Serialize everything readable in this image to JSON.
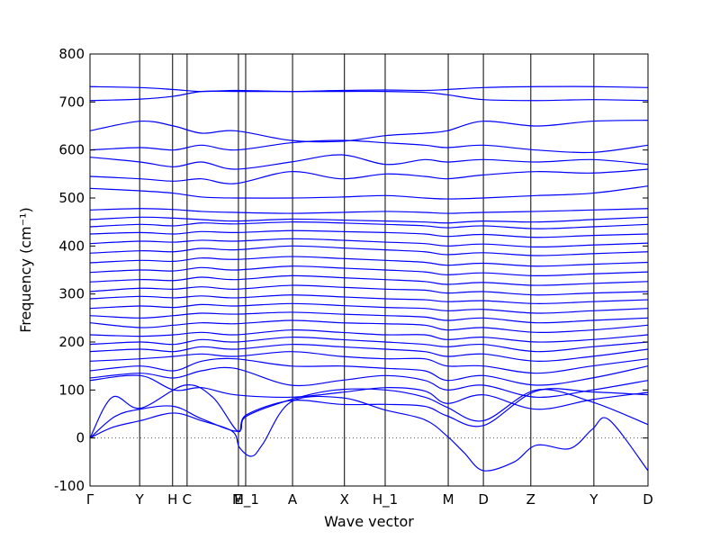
{
  "chart_data": {
    "type": "line",
    "xlabel": "Wave vector",
    "ylabel": "Frequency (cm⁻¹)",
    "ylim": [
      -100,
      800
    ],
    "yticks": [
      -100,
      0,
      100,
      200,
      300,
      400,
      500,
      600,
      700,
      800
    ],
    "xlim": [
      0,
      1
    ],
    "xticks": [
      {
        "label": "Γ",
        "x": 0.0
      },
      {
        "label": "Y",
        "x": 0.089
      },
      {
        "label": "H",
        "x": 0.148
      },
      {
        "label": "C",
        "x": 0.174
      },
      {
        "label": "E",
        "x": 0.266
      },
      {
        "label": "M_1",
        "x": 0.279
      },
      {
        "label": "A",
        "x": 0.363
      },
      {
        "label": "X",
        "x": 0.456
      },
      {
        "label": "H_1",
        "x": 0.529
      },
      {
        "label": "M",
        "x": 0.642
      },
      {
        "label": "D",
        "x": 0.705
      },
      {
        "label": "Z",
        "x": 0.79
      },
      {
        "label": "Y",
        "x": 0.903
      },
      {
        "label": "D",
        "x": 1.0
      }
    ],
    "zero_reference_line": 0,
    "line_color": "#0000ff",
    "series": [
      {
        "x": [
          0,
          0.04,
          0.09,
          0.17,
          0.22,
          0.265,
          0.28,
          0.36,
          0.45,
          0.53,
          0.6,
          0.64,
          0.705,
          0.8,
          0.9,
          1.0
        ],
        "y": [
          0,
          85,
          62,
          110,
          85,
          14,
          48,
          78,
          70,
          70,
          66,
          46,
          26,
          98,
          96,
          90
        ]
      },
      {
        "x": [
          0,
          0.045,
          0.09,
          0.15,
          0.2,
          0.265,
          0.28,
          0.36,
          0.44,
          0.53,
          0.6,
          0.64,
          0.705,
          0.8,
          0.9,
          1.0
        ],
        "y": [
          0,
          45,
          60,
          66,
          40,
          14,
          45,
          80,
          100,
          100,
          85,
          64,
          36,
          100,
          75,
          28
        ]
      },
      {
        "x": [
          0,
          0.04,
          0.09,
          0.15,
          0.2,
          0.255,
          0.268,
          0.29,
          0.31,
          0.36,
          0.45,
          0.53,
          0.6,
          0.64,
          0.67,
          0.705,
          0.76,
          0.8,
          0.86,
          0.9,
          0.93,
          1.0
        ],
        "y": [
          0,
          22,
          36,
          52,
          36,
          14,
          -20,
          -38,
          -12,
          75,
          84,
          58,
          38,
          4,
          -30,
          -68,
          -50,
          -15,
          -22,
          18,
          38,
          -68
        ]
      },
      {
        "x": [
          0,
          0.09,
          0.15,
          0.2,
          0.26,
          0.36,
          0.45,
          0.53,
          0.6,
          0.64,
          0.705,
          0.8,
          0.9,
          1.0
        ],
        "y": [
          120,
          130,
          100,
          105,
          90,
          85,
          95,
          105,
          98,
          72,
          90,
          60,
          80,
          95
        ]
      },
      {
        "x": [
          0,
          0.09,
          0.15,
          0.2,
          0.26,
          0.36,
          0.45,
          0.53,
          0.6,
          0.64,
          0.705,
          0.8,
          0.9,
          1.0
        ],
        "y": [
          125,
          135,
          125,
          140,
          145,
          110,
          120,
          130,
          120,
          100,
          110,
          85,
          100,
          120
        ]
      },
      {
        "x": [
          0,
          0.09,
          0.15,
          0.2,
          0.26,
          0.36,
          0.45,
          0.53,
          0.6,
          0.64,
          0.705,
          0.8,
          0.9,
          1.0
        ],
        "y": [
          140,
          150,
          140,
          160,
          165,
          150,
          150,
          145,
          140,
          120,
          130,
          110,
          125,
          150
        ]
      },
      {
        "x": [
          0,
          0.09,
          0.15,
          0.2,
          0.26,
          0.36,
          0.45,
          0.53,
          0.6,
          0.64,
          0.705,
          0.8,
          0.9,
          1.0
        ],
        "y": [
          160,
          165,
          170,
          175,
          170,
          180,
          170,
          165,
          165,
          150,
          150,
          135,
          150,
          165
        ]
      },
      {
        "x": [
          0,
          0.09,
          0.15,
          0.2,
          0.26,
          0.36,
          0.45,
          0.53,
          0.6,
          0.64,
          0.705,
          0.8,
          0.9,
          1.0
        ],
        "y": [
          180,
          185,
          180,
          190,
          185,
          195,
          190,
          185,
          180,
          170,
          175,
          160,
          170,
          185
        ]
      },
      {
        "x": [
          0,
          0.09,
          0.15,
          0.2,
          0.26,
          0.36,
          0.45,
          0.53,
          0.6,
          0.64,
          0.705,
          0.8,
          0.9,
          1.0
        ],
        "y": [
          195,
          200,
          195,
          205,
          200,
          210,
          205,
          200,
          195,
          190,
          195,
          180,
          190,
          200
        ]
      },
      {
        "x": [
          0,
          0.09,
          0.15,
          0.2,
          0.26,
          0.36,
          0.45,
          0.53,
          0.6,
          0.64,
          0.705,
          0.8,
          0.9,
          1.0
        ],
        "y": [
          215,
          212,
          215,
          220,
          215,
          225,
          220,
          215,
          215,
          205,
          210,
          200,
          205,
          215
        ]
      },
      {
        "x": [
          0,
          0.09,
          0.15,
          0.2,
          0.26,
          0.36,
          0.45,
          0.53,
          0.6,
          0.64,
          0.705,
          0.8,
          0.9,
          1.0
        ],
        "y": [
          240,
          230,
          235,
          240,
          238,
          245,
          240,
          238,
          235,
          225,
          230,
          220,
          225,
          235
        ]
      },
      {
        "x": [
          0,
          0.09,
          0.15,
          0.2,
          0.26,
          0.36,
          0.45,
          0.53,
          0.6,
          0.64,
          0.705,
          0.8,
          0.9,
          1.0
        ],
        "y": [
          255,
          250,
          255,
          260,
          258,
          262,
          258,
          255,
          252,
          245,
          250,
          240,
          245,
          250
        ]
      },
      {
        "x": [
          0,
          0.09,
          0.15,
          0.2,
          0.26,
          0.36,
          0.45,
          0.53,
          0.6,
          0.64,
          0.705,
          0.8,
          0.9,
          1.0
        ],
        "y": [
          270,
          275,
          272,
          278,
          275,
          280,
          276,
          272,
          270,
          265,
          268,
          260,
          265,
          270
        ]
      },
      {
        "x": [
          0,
          0.09,
          0.15,
          0.2,
          0.26,
          0.36,
          0.45,
          0.53,
          0.6,
          0.64,
          0.705,
          0.8,
          0.9,
          1.0
        ],
        "y": [
          290,
          295,
          292,
          296,
          292,
          298,
          294,
          290,
          288,
          284,
          286,
          280,
          284,
          288
        ]
      },
      {
        "x": [
          0,
          0.09,
          0.15,
          0.2,
          0.26,
          0.36,
          0.45,
          0.53,
          0.6,
          0.64,
          0.705,
          0.8,
          0.9,
          1.0
        ],
        "y": [
          305,
          312,
          310,
          315,
          310,
          318,
          314,
          310,
          308,
          302,
          305,
          298,
          302,
          305
        ]
      },
      {
        "x": [
          0,
          0.09,
          0.15,
          0.2,
          0.26,
          0.36,
          0.45,
          0.53,
          0.6,
          0.64,
          0.705,
          0.8,
          0.9,
          1.0
        ],
        "y": [
          325,
          330,
          328,
          335,
          330,
          338,
          334,
          330,
          326,
          320,
          324,
          318,
          322,
          326
        ]
      },
      {
        "x": [
          0,
          0.09,
          0.15,
          0.2,
          0.26,
          0.36,
          0.45,
          0.53,
          0.6,
          0.64,
          0.705,
          0.8,
          0.9,
          1.0
        ],
        "y": [
          345,
          350,
          348,
          355,
          350,
          358,
          354,
          350,
          346,
          340,
          344,
          338,
          342,
          346
        ]
      },
      {
        "x": [
          0,
          0.09,
          0.15,
          0.2,
          0.26,
          0.36,
          0.45,
          0.53,
          0.6,
          0.64,
          0.705,
          0.8,
          0.9,
          1.0
        ],
        "y": [
          365,
          370,
          368,
          375,
          372,
          378,
          374,
          370,
          366,
          360,
          364,
          358,
          362,
          366
        ]
      },
      {
        "x": [
          0,
          0.09,
          0.15,
          0.2,
          0.26,
          0.36,
          0.45,
          0.53,
          0.6,
          0.64,
          0.705,
          0.8,
          0.9,
          1.0
        ],
        "y": [
          385,
          390,
          388,
          395,
          392,
          400,
          396,
          392,
          388,
          382,
          386,
          380,
          384,
          388
        ]
      },
      {
        "x": [
          0,
          0.09,
          0.15,
          0.2,
          0.26,
          0.36,
          0.45,
          0.53,
          0.6,
          0.64,
          0.705,
          0.8,
          0.9,
          1.0
        ],
        "y": [
          405,
          410,
          408,
          412,
          410,
          415,
          412,
          408,
          405,
          400,
          404,
          398,
          402,
          406
        ]
      },
      {
        "x": [
          0,
          0.09,
          0.15,
          0.2,
          0.26,
          0.36,
          0.45,
          0.53,
          0.6,
          0.64,
          0.705,
          0.8,
          0.9,
          1.0
        ],
        "y": [
          425,
          428,
          425,
          430,
          428,
          432,
          430,
          428,
          425,
          420,
          424,
          418,
          422,
          425
        ]
      },
      {
        "x": [
          0,
          0.09,
          0.15,
          0.2,
          0.26,
          0.36,
          0.45,
          0.53,
          0.6,
          0.64,
          0.705,
          0.8,
          0.9,
          1.0
        ],
        "y": [
          440,
          445,
          442,
          448,
          446,
          450,
          448,
          445,
          442,
          438,
          442,
          436,
          440,
          445
        ]
      },
      {
        "x": [
          0,
          0.09,
          0.15,
          0.2,
          0.26,
          0.36,
          0.45,
          0.53,
          0.6,
          0.64,
          0.705,
          0.8,
          0.9,
          1.0
        ],
        "y": [
          455,
          460,
          458,
          455,
          452,
          456,
          454,
          452,
          450,
          448,
          452,
          450,
          455,
          460
        ]
      },
      {
        "x": [
          0,
          0.09,
          0.15,
          0.2,
          0.26,
          0.36,
          0.45,
          0.53,
          0.6,
          0.64,
          0.705,
          0.8,
          0.9,
          1.0
        ],
        "y": [
          475,
          478,
          476,
          472,
          470,
          468,
          470,
          472,
          470,
          468,
          470,
          472,
          475,
          478
        ]
      },
      {
        "x": [
          0,
          0.09,
          0.15,
          0.2,
          0.26,
          0.36,
          0.45,
          0.53,
          0.6,
          0.64,
          0.705,
          0.8,
          0.9,
          1.0
        ],
        "y": [
          520,
          515,
          510,
          502,
          500,
          500,
          502,
          505,
          500,
          498,
          500,
          505,
          510,
          525
        ]
      },
      {
        "x": [
          0,
          0.09,
          0.15,
          0.2,
          0.26,
          0.36,
          0.45,
          0.53,
          0.6,
          0.64,
          0.705,
          0.8,
          0.9,
          1.0
        ],
        "y": [
          545,
          540,
          535,
          540,
          530,
          555,
          540,
          550,
          545,
          540,
          548,
          555,
          552,
          560
        ]
      },
      {
        "x": [
          0,
          0.09,
          0.15,
          0.2,
          0.26,
          0.36,
          0.45,
          0.53,
          0.6,
          0.64,
          0.705,
          0.8,
          0.9,
          1.0
        ],
        "y": [
          585,
          575,
          565,
          575,
          560,
          575,
          590,
          570,
          580,
          575,
          580,
          575,
          580,
          570
        ]
      },
      {
        "x": [
          0,
          0.09,
          0.15,
          0.2,
          0.26,
          0.36,
          0.45,
          0.53,
          0.6,
          0.64,
          0.705,
          0.8,
          0.9,
          1.0
        ],
        "y": [
          600,
          605,
          600,
          610,
          600,
          615,
          620,
          615,
          610,
          605,
          610,
          600,
          595,
          610
        ]
      },
      {
        "x": [
          0,
          0.09,
          0.15,
          0.2,
          0.26,
          0.36,
          0.45,
          0.53,
          0.6,
          0.64,
          0.705,
          0.8,
          0.9,
          1.0
        ],
        "y": [
          640,
          660,
          650,
          635,
          640,
          620,
          618,
          630,
          635,
          640,
          660,
          650,
          660,
          662
        ]
      },
      {
        "x": [
          0,
          0.09,
          0.15,
          0.2,
          0.26,
          0.36,
          0.45,
          0.53,
          0.6,
          0.64,
          0.705,
          0.8,
          0.9,
          1.0
        ],
        "y": [
          703,
          706,
          712,
          722,
          722,
          722,
          722,
          722,
          720,
          715,
          705,
          703,
          705,
          703
        ]
      },
      {
        "x": [
          0,
          0.09,
          0.15,
          0.2,
          0.26,
          0.36,
          0.45,
          0.53,
          0.6,
          0.64,
          0.705,
          0.8,
          0.9,
          1.0
        ],
        "y": [
          732,
          730,
          726,
          722,
          724,
          722,
          724,
          725,
          724,
          726,
          730,
          732,
          732,
          730
        ]
      }
    ]
  }
}
